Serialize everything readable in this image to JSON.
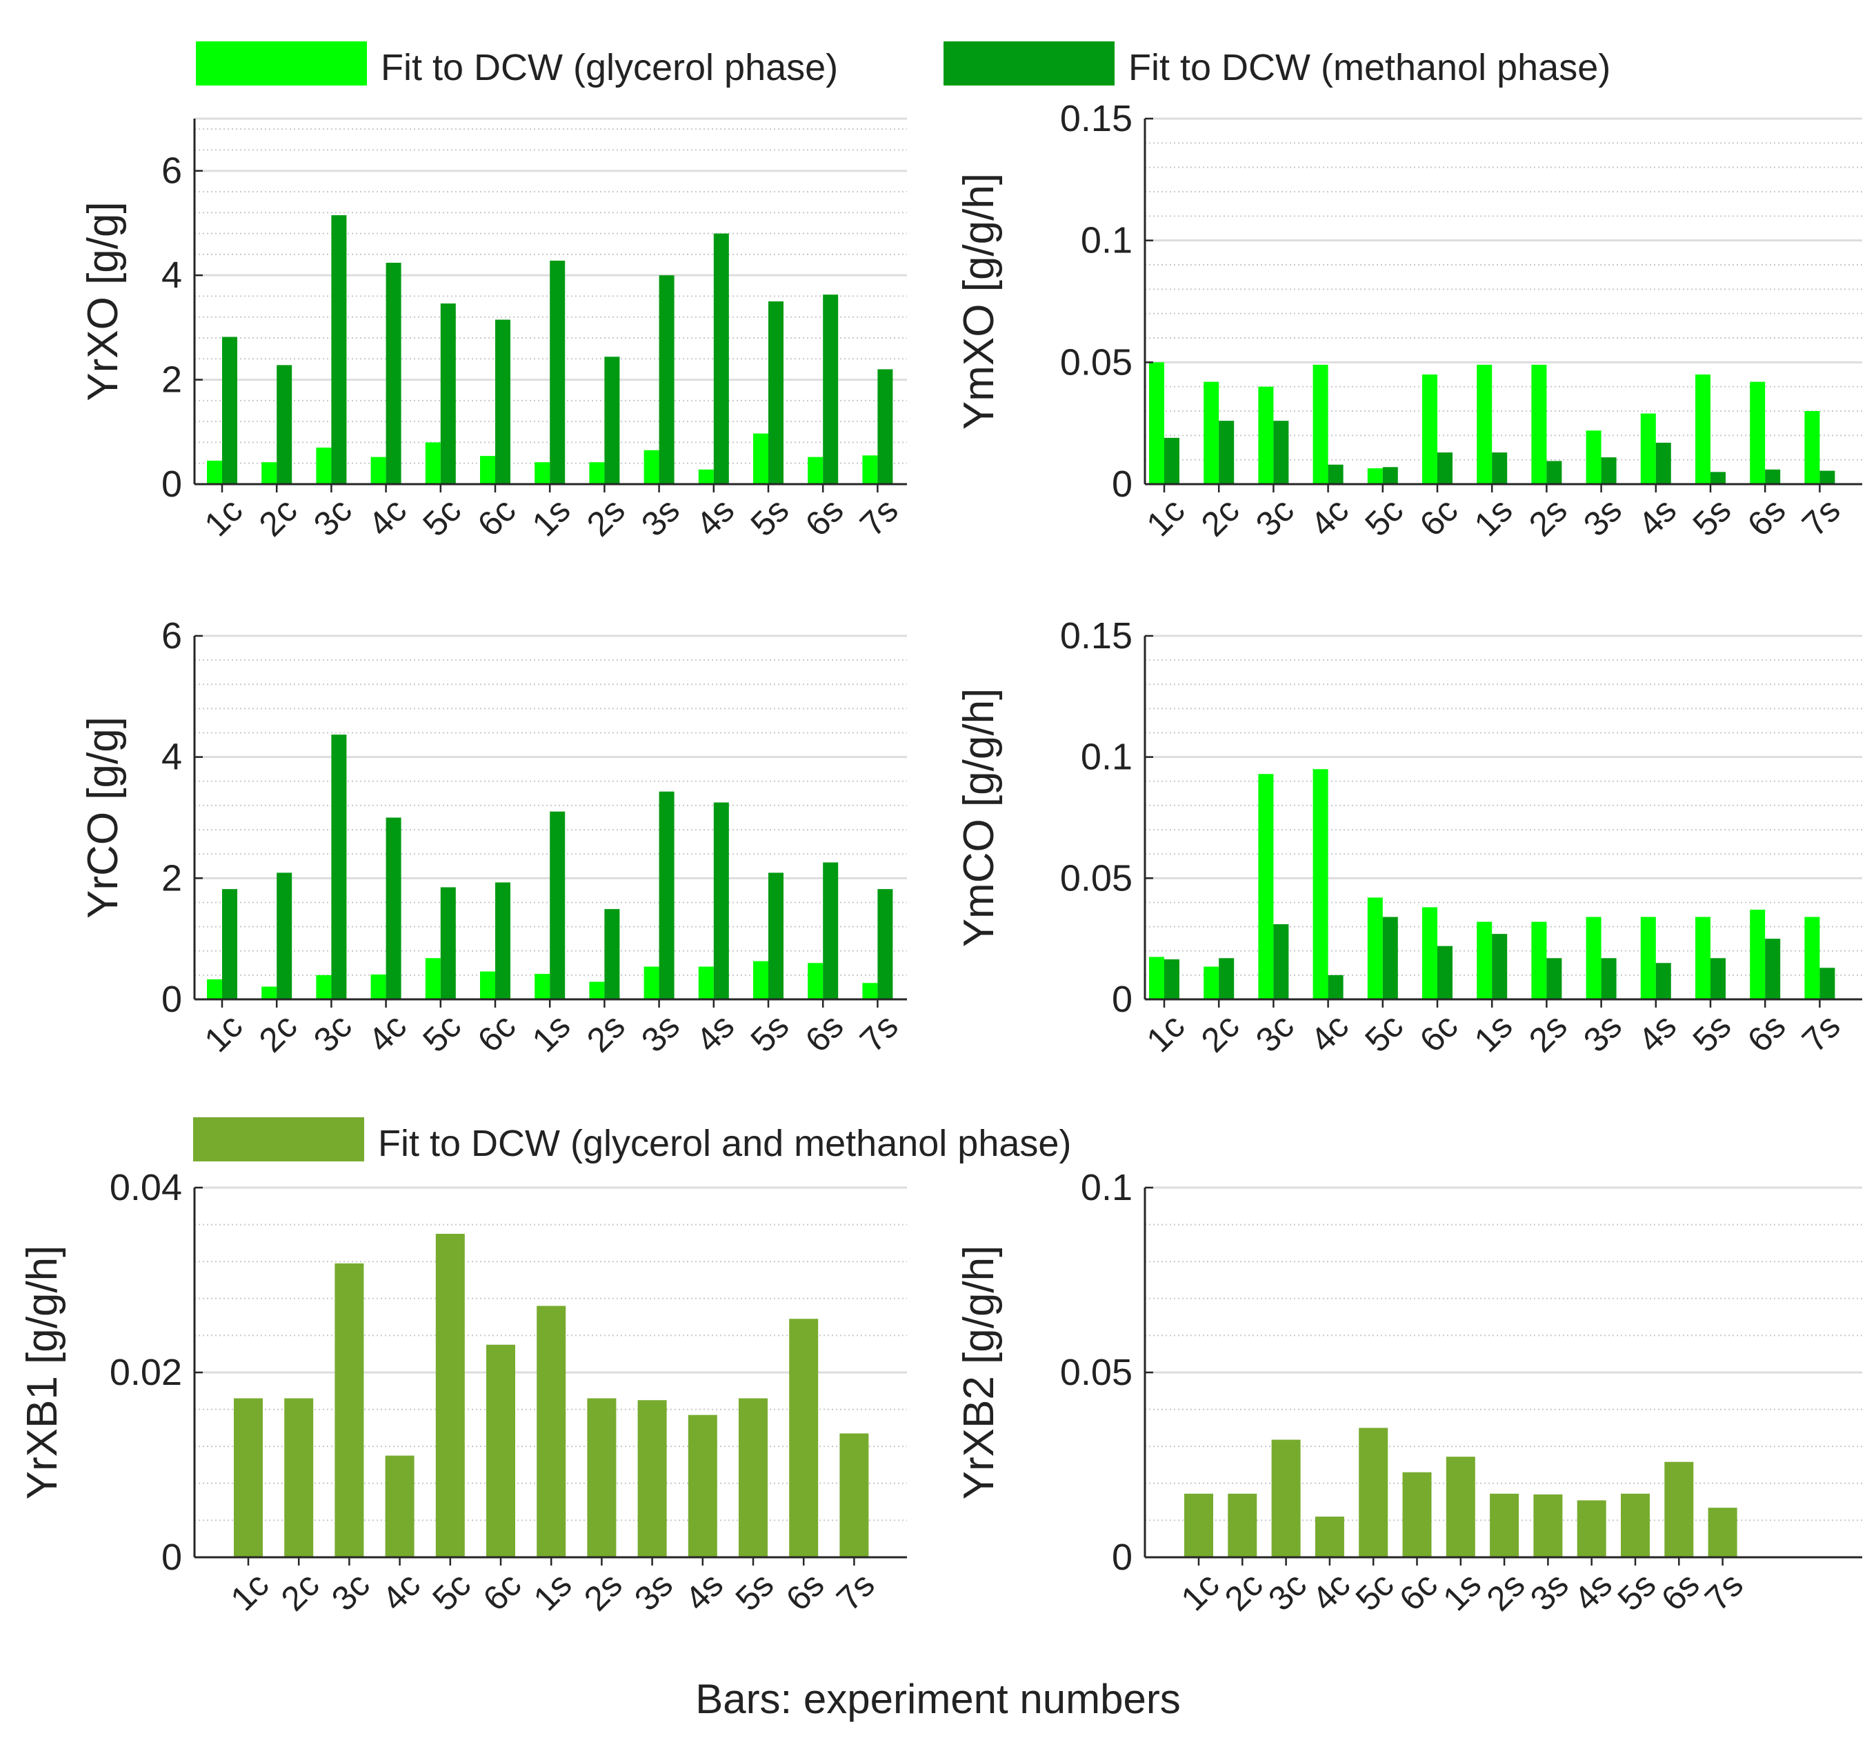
{
  "legend_top": {
    "glycerol": {
      "label": "Fit to DCW (glycerol phase)",
      "color": "#00ff00"
    },
    "methanol": {
      "label": "Fit to DCW (methanol phase)",
      "color": "#009a12"
    }
  },
  "legend_bottom": {
    "both": {
      "label": "Fit to DCW (glycerol and methanol phase)",
      "color": "#77ab2e"
    }
  },
  "global_xlabel": "Bars: experiment numbers",
  "chart_data": [
    {
      "id": "yrxo",
      "type": "bar",
      "ylabel": "YrXO [g/g]",
      "ylim": [
        0,
        7
      ],
      "yticks": [
        0,
        2,
        4,
        6
      ],
      "ytick_labels": [
        "0",
        "2",
        "4",
        "6"
      ],
      "categories": [
        "1c",
        "2c",
        "3c",
        "4c",
        "5c",
        "6c",
        "1s",
        "2s",
        "3s",
        "4s",
        "5s",
        "6s",
        "7s"
      ],
      "series": [
        {
          "name": "Fit to DCW (glycerol phase)",
          "color": "#00ff00",
          "values": [
            0.45,
            0.42,
            0.7,
            0.52,
            0.8,
            0.54,
            0.42,
            0.42,
            0.65,
            0.28,
            0.97,
            0.52,
            0.55
          ]
        },
        {
          "name": "Fit to DCW (methanol phase)",
          "color": "#009a12",
          "values": [
            2.82,
            2.28,
            5.15,
            4.24,
            3.46,
            3.15,
            4.28,
            2.44,
            4.0,
            4.8,
            3.5,
            3.63,
            2.2
          ]
        }
      ]
    },
    {
      "id": "ymxo",
      "type": "bar",
      "ylabel": "YmXO [g/g/h]",
      "ylim": [
        0,
        0.15
      ],
      "yticks": [
        0,
        0.05,
        0.1,
        0.15
      ],
      "ytick_labels": [
        "0",
        "0.05",
        "0.1",
        "0.15"
      ],
      "categories": [
        "1c",
        "2c",
        "3c",
        "4c",
        "5c",
        "6c",
        "1s",
        "2s",
        "3s",
        "4s",
        "5s",
        "6s",
        "7s"
      ],
      "series": [
        {
          "name": "Fit to DCW (glycerol phase)",
          "color": "#00ff00",
          "values": [
            0.05,
            0.042,
            0.04,
            0.049,
            0.0065,
            0.045,
            0.049,
            0.049,
            0.022,
            0.029,
            0.045,
            0.042,
            0.03
          ]
        },
        {
          "name": "Fit to DCW (methanol phase)",
          "color": "#009a12",
          "values": [
            0.019,
            0.026,
            0.026,
            0.008,
            0.007,
            0.013,
            0.013,
            0.0095,
            0.011,
            0.017,
            0.005,
            0.006,
            0.0055
          ]
        }
      ]
    },
    {
      "id": "yrco",
      "type": "bar",
      "ylabel": "YrCO [g/g]",
      "ylim": [
        0,
        6
      ],
      "yticks": [
        0,
        2,
        4,
        6
      ],
      "ytick_labels": [
        "0",
        "2",
        "4",
        "6"
      ],
      "categories": [
        "1c",
        "2c",
        "3c",
        "4c",
        "5c",
        "6c",
        "1s",
        "2s",
        "3s",
        "4s",
        "5s",
        "6s",
        "7s"
      ],
      "series": [
        {
          "name": "Fit to DCW (glycerol phase)",
          "color": "#00ff00",
          "values": [
            0.33,
            0.21,
            0.4,
            0.41,
            0.68,
            0.46,
            0.42,
            0.29,
            0.54,
            0.54,
            0.63,
            0.6,
            0.27
          ]
        },
        {
          "name": "Fit to DCW (methanol phase)",
          "color": "#009a12",
          "values": [
            1.82,
            2.09,
            4.37,
            3.0,
            1.85,
            1.93,
            3.1,
            1.49,
            3.43,
            3.25,
            2.09,
            2.26,
            1.82
          ]
        }
      ]
    },
    {
      "id": "ymco",
      "type": "bar",
      "ylabel": "YmCO [g/g/h]",
      "ylim": [
        0,
        0.15
      ],
      "yticks": [
        0,
        0.05,
        0.1,
        0.15
      ],
      "ytick_labels": [
        "0",
        "0.05",
        "0.1",
        "0.15"
      ],
      "categories": [
        "1c",
        "2c",
        "3c",
        "4c",
        "5c",
        "6c",
        "1s",
        "2s",
        "3s",
        "4s",
        "5s",
        "6s",
        "7s"
      ],
      "series": [
        {
          "name": "Fit to DCW (glycerol phase)",
          "color": "#00ff00",
          "values": [
            0.0175,
            0.0135,
            0.093,
            0.095,
            0.042,
            0.038,
            0.032,
            0.032,
            0.034,
            0.034,
            0.034,
            0.037,
            0.034
          ]
        },
        {
          "name": "Fit to DCW (methanol phase)",
          "color": "#009a12",
          "values": [
            0.0165,
            0.017,
            0.031,
            0.01,
            0.034,
            0.022,
            0.027,
            0.017,
            0.017,
            0.015,
            0.017,
            0.025,
            0.013
          ]
        }
      ]
    },
    {
      "id": "yrxb1",
      "type": "bar",
      "ylabel": "YrXB1 [g/g/h]",
      "ylim": [
        0,
        0.04
      ],
      "yticks": [
        0,
        0.02,
        0.04
      ],
      "ytick_labels": [
        "0",
        "0.02",
        "0.04"
      ],
      "categories": [
        "1c",
        "2c",
        "3c",
        "4c",
        "5c",
        "6c",
        "1s",
        "2s",
        "3s",
        "4s",
        "5s",
        "6s",
        "7s"
      ],
      "series": [
        {
          "name": "Fit to DCW (glycerol and methanol phase)",
          "color": "#77ab2e",
          "values": [
            0.0172,
            0.0172,
            0.0318,
            0.011,
            0.035,
            0.023,
            0.0272,
            0.0172,
            0.017,
            0.0154,
            0.0172,
            0.0258,
            0.0134
          ]
        }
      ]
    },
    {
      "id": "yrxb2",
      "type": "bar",
      "ylabel": "YrXB2 [g/g/h]",
      "ylim": [
        0,
        0.1
      ],
      "yticks": [
        0,
        0.05,
        0.1
      ],
      "ytick_labels": [
        "0",
        "0.05",
        "0.1"
      ],
      "categories": [
        "1c",
        "2c",
        "3c",
        "4c",
        "5c",
        "6c",
        "1s",
        "2s",
        "3s",
        "4s",
        "5s",
        "6s",
        "7s"
      ],
      "series": [
        {
          "name": "Fit to DCW (glycerol and methanol phase)",
          "color": "#77ab2e",
          "values": [
            0.0172,
            0.0172,
            0.0318,
            0.011,
            0.035,
            0.023,
            0.0272,
            0.0172,
            0.017,
            0.0154,
            0.0172,
            0.0258,
            0.0134
          ]
        }
      ]
    }
  ]
}
